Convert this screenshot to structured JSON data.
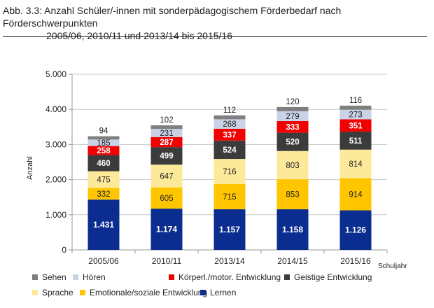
{
  "chart_data": {
    "type": "bar",
    "stacked": true,
    "title_line1": "Abb. 3.3: Anzahl Schüler/-innen mit sonderpädagogischem Förderbedarf nach Förderschwerpunkten",
    "title_line2": "2005/06, 2010/11 und 2013/14 bis 2015/16",
    "xlabel": "Schuljahr",
    "ylabel": "Anzahl",
    "ylim": [
      0,
      5000
    ],
    "yticks": [
      0,
      1000,
      2000,
      3000,
      4000,
      5000
    ],
    "ytick_labels": [
      "0",
      "1.000",
      "2.000",
      "3.000",
      "4.000",
      "5.000"
    ],
    "grid": true,
    "legend_position": "bottom",
    "categories": [
      "2005/06",
      "2010/11",
      "2013/14",
      "2014/15",
      "2015/16"
    ],
    "series": [
      {
        "name": "Lernen",
        "color": "#0a2d8f",
        "label_color": "#ffffff",
        "values": [
          1431,
          1174,
          1157,
          1158,
          1126
        ],
        "labels": [
          "1.431",
          "1.174",
          "1.157",
          "1.158",
          "1.126"
        ]
      },
      {
        "name": "Emotionale/soziale Entwicklung",
        "color": "#ffc600",
        "label_color": "#222222",
        "values": [
          332,
          605,
          715,
          853,
          914
        ],
        "labels": [
          "332",
          "605",
          "715",
          "853",
          "914"
        ]
      },
      {
        "name": "Sprache",
        "color": "#fde99a",
        "label_color": "#222222",
        "values": [
          475,
          647,
          716,
          803,
          814
        ],
        "labels": [
          "475",
          "647",
          "716",
          "803",
          "814"
        ]
      },
      {
        "name": "Geistige Entwicklung",
        "color": "#3b3b3b",
        "label_color": "#ffffff",
        "values": [
          460,
          499,
          524,
          520,
          511
        ],
        "labels": [
          "460",
          "499",
          "524",
          "520",
          "511"
        ]
      },
      {
        "name": "Körperl./motor. Entwicklung",
        "color": "#f00000",
        "label_color": "#ffffff",
        "values": [
          258,
          287,
          337,
          333,
          351
        ],
        "labels": [
          "258",
          "287",
          "337",
          "333",
          "351"
        ]
      },
      {
        "name": "Hören",
        "color": "#c9d2e6",
        "label_color": "#222222",
        "values": [
          185,
          231,
          268,
          279,
          273
        ],
        "labels": [
          "185",
          "231",
          "268",
          "279",
          "273"
        ]
      },
      {
        "name": "Sehen",
        "color": "#7f7f7f",
        "label_color": "#222222",
        "values": [
          94,
          102,
          112,
          120,
          116
        ],
        "labels": [
          "94",
          "102",
          "112",
          "120",
          "116"
        ]
      }
    ],
    "legend_order": [
      "Sehen",
      "Hören",
      "Körperl./motor. Entwicklung",
      "Geistige Entwicklung",
      "Sprache",
      "Emotionale/soziale Entwicklung",
      "Lernen"
    ]
  }
}
